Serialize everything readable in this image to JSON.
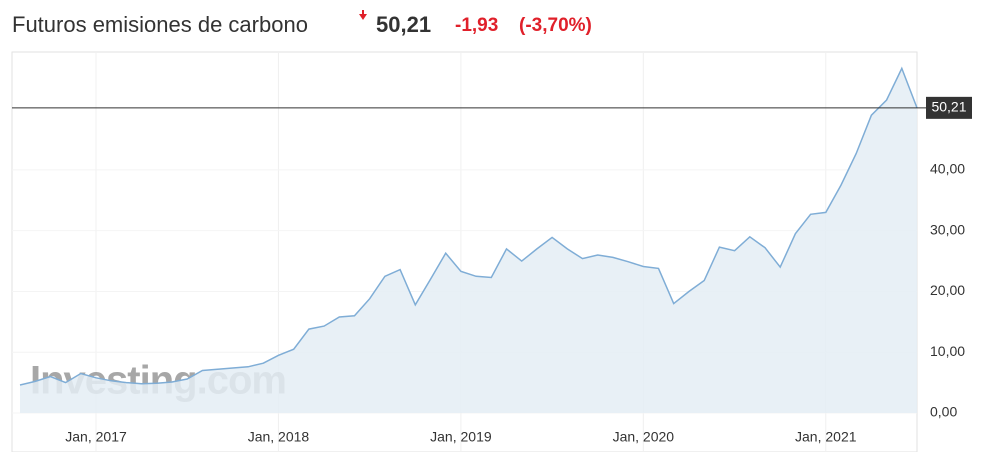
{
  "header": {
    "title": "Futuros emisiones de carbono",
    "price": "50,21",
    "change": "-1,93",
    "change_pct": "(-3,70%)"
  },
  "chart_data": {
    "type": "area",
    "watermark": "Investing.com",
    "x": [
      "2016-08",
      "2016-09",
      "2016-10",
      "2016-11",
      "2016-12",
      "2017-01",
      "2017-02",
      "2017-03",
      "2017-04",
      "2017-05",
      "2017-06",
      "2017-07",
      "2017-08",
      "2017-09",
      "2017-10",
      "2017-11",
      "2017-12",
      "2018-01",
      "2018-02",
      "2018-03",
      "2018-04",
      "2018-05",
      "2018-06",
      "2018-07",
      "2018-08",
      "2018-09",
      "2018-10",
      "2018-11",
      "2018-12",
      "2019-01",
      "2019-02",
      "2019-03",
      "2019-04",
      "2019-05",
      "2019-06",
      "2019-07",
      "2019-08",
      "2019-09",
      "2019-10",
      "2019-11",
      "2019-12",
      "2020-01",
      "2020-02",
      "2020-03",
      "2020-04",
      "2020-05",
      "2020-06",
      "2020-07",
      "2020-08",
      "2020-09",
      "2020-10",
      "2020-11",
      "2020-12",
      "2021-01",
      "2021-02",
      "2021-03",
      "2021-04",
      "2021-05",
      "2021-06",
      "2021-07"
    ],
    "series": [
      {
        "name": "Futuros emisiones de carbono",
        "color": "#7fadd6",
        "fill": "#e4edf5",
        "values": [
          4.6,
          5.2,
          6.0,
          5.0,
          6.5,
          5.8,
          5.3,
          5.0,
          4.8,
          4.9,
          5.1,
          5.6,
          7.0,
          7.2,
          7.4,
          7.6,
          8.2,
          9.5,
          10.5,
          13.8,
          14.3,
          15.8,
          16.0,
          18.8,
          22.5,
          23.6,
          17.8,
          22.0,
          26.3,
          23.3,
          22.5,
          22.3,
          27.0,
          25.0,
          27.0,
          28.9,
          27.0,
          25.4,
          26.0,
          25.6,
          24.9,
          24.1,
          23.8,
          18.0,
          20.0,
          21.8,
          27.3,
          26.7,
          29.0,
          27.2,
          24.0,
          29.5,
          32.7,
          33.0,
          37.5,
          42.7,
          49.0,
          51.5,
          56.7,
          50.21
        ]
      }
    ],
    "xlim": [
      "2016-08",
      "2021-07"
    ],
    "xticks": [
      {
        "value": "2017-01",
        "label": "Jan, 2017"
      },
      {
        "value": "2018-01",
        "label": "Jan, 2018"
      },
      {
        "value": "2019-01",
        "label": "Jan, 2019"
      },
      {
        "value": "2020-01",
        "label": "Jan, 2020"
      },
      {
        "value": "2021-01",
        "label": "Jan, 2021"
      }
    ],
    "ylim": [
      0,
      59.4
    ],
    "yticks": [
      {
        "value": 0,
        "label": "0,00"
      },
      {
        "value": 10,
        "label": "10,00"
      },
      {
        "value": 20,
        "label": "20,00"
      },
      {
        "value": 30,
        "label": "30,00"
      },
      {
        "value": 40,
        "label": "40,00"
      }
    ],
    "grid": true
  }
}
